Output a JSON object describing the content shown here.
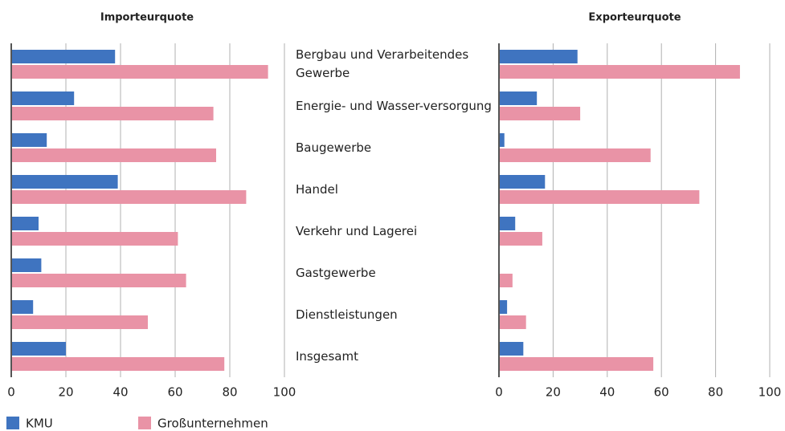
{
  "chart_data": [
    {
      "type": "bar",
      "title": "Importeurquote",
      "categories": [
        "Bergbau und Verarbeitendes Gewerbe",
        "Energie- und Wasser-versorgung",
        "Baugewerbe",
        "Handel",
        "Verkehr und Lagerei",
        "Gastgewerbe",
        "Dienstleistungen",
        "Insgesamt"
      ],
      "series": [
        {
          "name": "KMU",
          "color": "#3f74c0",
          "values": [
            38,
            23,
            13,
            39,
            10,
            11,
            8,
            20
          ]
        },
        {
          "name": "Großunternehmen",
          "color": "#e993a6",
          "values": [
            94,
            74,
            75,
            86,
            61,
            64,
            50,
            78
          ]
        }
      ],
      "xlim": [
        0,
        100
      ],
      "xticks": [
        0,
        20,
        40,
        60,
        80,
        100
      ],
      "grid": true
    },
    {
      "type": "bar",
      "title": "Exporteurquote",
      "series": [
        {
          "color": "#3f74c0",
          "values": [
            29,
            14,
            2,
            17,
            6,
            0,
            3,
            9
          ]
        },
        {
          "color": "#e993a6",
          "values": [
            89,
            30,
            56,
            74,
            16,
            5,
            10,
            57
          ]
        }
      ],
      "xlim": [
        0,
        100
      ],
      "xticks": [
        0,
        20,
        40,
        60,
        80,
        100
      ],
      "grid": true
    }
  ]
}
